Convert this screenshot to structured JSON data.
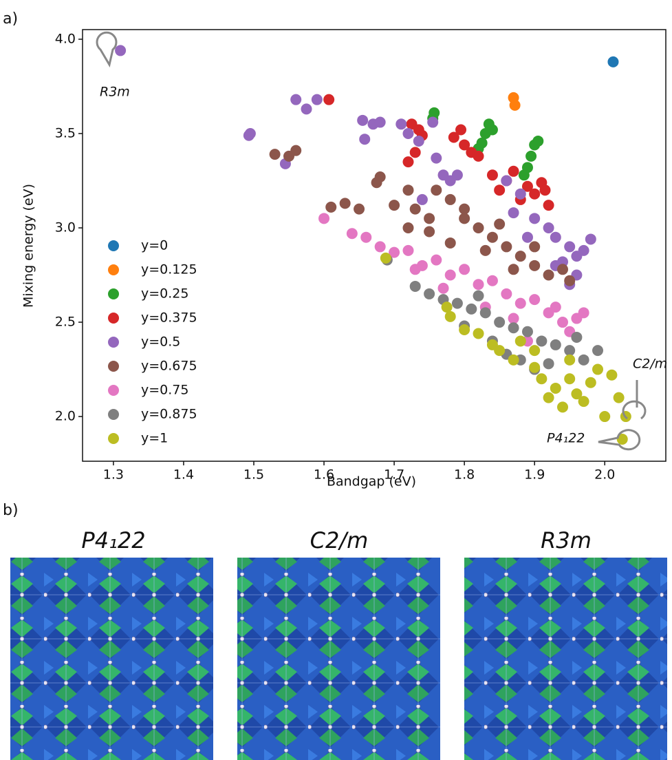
{
  "chart_data": {
    "type": "scatter",
    "xlabel": "Bandgap (eV)",
    "ylabel": "Mixing energy (eV)",
    "xlim": [
      1.256,
      2.087
    ],
    "ylim": [
      1.763,
      4.051
    ],
    "xticks": [
      1.3,
      1.4,
      1.5,
      1.6,
      1.7,
      1.8,
      1.9,
      {
        "value": 2,
        "label": "2.0"
      }
    ],
    "yticks": [
      {
        "value": 2,
        "label": "2.0"
      },
      2.5,
      {
        "value": 3,
        "label": "3.0"
      },
      3.5,
      {
        "value": 4,
        "label": "4.0"
      }
    ],
    "legend": "lower left",
    "annotations": [
      "R3m",
      "C2/m",
      "P4₁22"
    ],
    "series": [
      {
        "name": "y=0",
        "color": "#1f77b4",
        "x": [
          2.012
        ],
        "values": [
          3.88
        ]
      },
      {
        "name": "y=0.125",
        "color": "#ff7f0e",
        "x": [
          1.87,
          1.872
        ],
        "values": [
          3.69,
          3.65
        ]
      },
      {
        "name": "y=0.25",
        "color": "#2ca02c",
        "x": [
          1.757,
          1.755,
          1.82,
          1.83,
          1.835,
          1.84,
          1.825,
          1.9,
          1.895,
          1.89,
          1.885,
          1.905
        ],
        "values": [
          3.61,
          3.58,
          3.42,
          3.5,
          3.55,
          3.52,
          3.45,
          3.44,
          3.38,
          3.32,
          3.28,
          3.46
        ]
      },
      {
        "name": "y=0.375",
        "color": "#d62728",
        "x": [
          1.607,
          1.72,
          1.725,
          1.735,
          1.74,
          1.785,
          1.8,
          1.81,
          1.795,
          1.82,
          1.84,
          1.85,
          1.86,
          1.87,
          1.88,
          1.89,
          1.9,
          1.91,
          1.92,
          1.915,
          1.73
        ],
        "values": [
          3.68,
          3.35,
          3.55,
          3.52,
          3.49,
          3.48,
          3.44,
          3.4,
          3.52,
          3.38,
          3.28,
          3.2,
          3.25,
          3.3,
          3.15,
          3.22,
          3.18,
          3.24,
          3.12,
          3.2,
          3.4
        ]
      },
      {
        "name": "y=0.5",
        "color": "#9467bd",
        "x": [
          1.31,
          1.493,
          1.495,
          1.56,
          1.575,
          1.59,
          1.545,
          1.655,
          1.67,
          1.68,
          1.658,
          1.71,
          1.72,
          1.735,
          1.755,
          1.76,
          1.77,
          1.78,
          1.79,
          1.86,
          1.88,
          1.9,
          1.92,
          1.93,
          1.95,
          1.96,
          1.98,
          1.97,
          1.94,
          1.96,
          1.95,
          1.93,
          1.89,
          1.87,
          1.74
        ],
        "values": [
          3.94,
          3.49,
          3.5,
          3.68,
          3.63,
          3.68,
          3.34,
          3.57,
          3.55,
          3.56,
          3.47,
          3.55,
          3.5,
          3.46,
          3.56,
          3.37,
          3.28,
          3.25,
          3.28,
          3.25,
          3.18,
          3.05,
          3.0,
          2.95,
          2.9,
          2.85,
          2.94,
          2.88,
          2.82,
          2.75,
          2.7,
          2.8,
          2.95,
          3.08,
          3.15
        ]
      },
      {
        "name": "y=0.675",
        "color": "#8c564b",
        "x": [
          1.53,
          1.55,
          1.56,
          1.61,
          1.63,
          1.65,
          1.675,
          1.68,
          1.7,
          1.72,
          1.73,
          1.75,
          1.76,
          1.78,
          1.8,
          1.82,
          1.84,
          1.86,
          1.88,
          1.9,
          1.92,
          1.94,
          1.95,
          1.75,
          1.78,
          1.83,
          1.87,
          1.8,
          1.72,
          1.85,
          1.9
        ],
        "values": [
          3.39,
          3.38,
          3.41,
          3.11,
          3.13,
          3.1,
          3.24,
          3.27,
          3.12,
          3.2,
          3.1,
          3.05,
          3.2,
          3.15,
          3.1,
          3.0,
          2.95,
          2.9,
          2.85,
          2.8,
          2.75,
          2.78,
          2.72,
          2.98,
          2.92,
          2.88,
          2.78,
          3.05,
          3.0,
          3.02,
          2.9
        ]
      },
      {
        "name": "y=0.75",
        "color": "#e377c2",
        "x": [
          1.6,
          1.64,
          1.66,
          1.68,
          1.7,
          1.72,
          1.74,
          1.76,
          1.78,
          1.8,
          1.82,
          1.84,
          1.86,
          1.88,
          1.9,
          1.92,
          1.94,
          1.96,
          1.97,
          1.95,
          1.87,
          1.83,
          1.77,
          1.73,
          1.93,
          1.89
        ],
        "values": [
          3.05,
          2.97,
          2.95,
          2.9,
          2.87,
          2.88,
          2.8,
          2.83,
          2.75,
          2.78,
          2.7,
          2.72,
          2.65,
          2.6,
          2.62,
          2.55,
          2.5,
          2.52,
          2.55,
          2.45,
          2.52,
          2.58,
          2.68,
          2.78,
          2.58,
          2.4
        ]
      },
      {
        "name": "y=0.875",
        "color": "#7f7f7f",
        "x": [
          1.69,
          1.73,
          1.75,
          1.77,
          1.79,
          1.81,
          1.83,
          1.85,
          1.87,
          1.89,
          1.91,
          1.93,
          1.95,
          1.97,
          1.99,
          1.84,
          1.86,
          1.88,
          1.9,
          1.8,
          1.92,
          1.96,
          1.82
        ],
        "values": [
          2.83,
          2.69,
          2.65,
          2.62,
          2.6,
          2.57,
          2.55,
          2.5,
          2.47,
          2.45,
          2.4,
          2.38,
          2.35,
          2.3,
          2.35,
          2.4,
          2.33,
          2.3,
          2.25,
          2.48,
          2.28,
          2.42,
          2.64
        ]
      },
      {
        "name": "y=1",
        "color": "#bcbd22",
        "x": [
          1.688,
          1.775,
          1.78,
          1.8,
          1.82,
          1.84,
          1.85,
          1.87,
          1.9,
          1.91,
          1.93,
          1.95,
          1.96,
          1.98,
          1.99,
          1.92,
          1.94,
          1.97,
          2.0,
          2.01,
          2.02,
          2.03,
          2.025,
          1.9,
          1.95,
          1.88
        ],
        "values": [
          2.84,
          2.58,
          2.53,
          2.46,
          2.44,
          2.38,
          2.35,
          2.3,
          2.26,
          2.2,
          2.15,
          2.2,
          2.12,
          2.18,
          2.25,
          2.1,
          2.05,
          2.08,
          2.0,
          2.22,
          2.1,
          2.0,
          1.88,
          2.35,
          2.3,
          2.4
        ]
      }
    ]
  },
  "panels": [
    "a)",
    "b)"
  ],
  "structures": [
    "P4₁22",
    "C2/m",
    "R3m"
  ]
}
